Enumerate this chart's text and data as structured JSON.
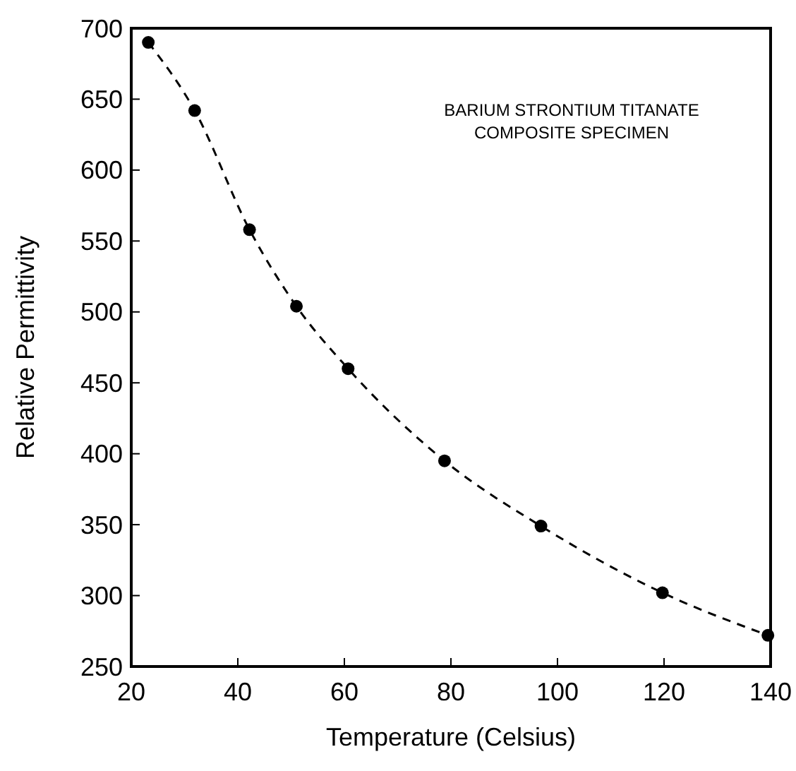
{
  "chart_data": {
    "type": "line",
    "xlabel": "Temperature (Celsius)",
    "ylabel": "Relative Permittivity",
    "annotations": [
      "BARIUM STRONTIUM TITANATE",
      "COMPOSITE SPECIMEN"
    ],
    "x": [
      23.2,
      31.9,
      42.2,
      51.0,
      60.7,
      78.8,
      96.9,
      119.7,
      139.5
    ],
    "series": [
      {
        "color": "#000000",
        "values": [
          690,
          642,
          558,
          504,
          460,
          395,
          349,
          302,
          272
        ]
      }
    ],
    "marker": "circle",
    "line_style": "dashed",
    "grid": false,
    "xlim": [
      20,
      140
    ],
    "xticks": [
      20,
      40,
      60,
      80,
      100,
      120,
      140
    ],
    "ylim": [
      250,
      700
    ],
    "yticks": [
      250,
      300,
      350,
      400,
      450,
      500,
      550,
      600,
      650,
      700
    ]
  }
}
